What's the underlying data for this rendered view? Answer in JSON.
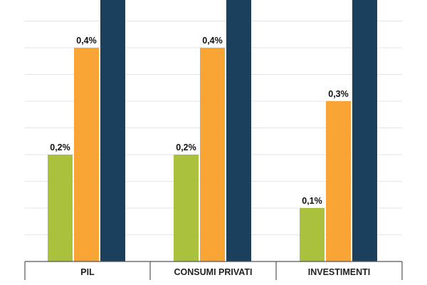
{
  "chart_data": {
    "type": "bar",
    "categories": [
      "PIL",
      "CONSUMI PRIVATI",
      "INVESTIMENTI"
    ],
    "series": [
      {
        "values": [
          0.2,
          0.2,
          0.1
        ],
        "labels": [
          "0,2%",
          "0,2%",
          "0,1%"
        ],
        "color": "#a9c13d"
      },
      {
        "values": [
          0.4,
          0.4,
          0.3
        ],
        "labels": [
          "0,4%",
          "0,4%",
          "0,3%"
        ],
        "color": "#f9a535"
      },
      {
        "values": [
          null,
          null,
          null
        ],
        "labels": [
          null,
          null,
          null
        ],
        "color": "#1b405e"
      }
    ],
    "title": "",
    "xlabel": "",
    "ylabel": "",
    "ylim": [
      0,
      0.5
    ],
    "grid": true,
    "gridline_step": 0.05,
    "legend": "none",
    "note": "third series extends beyond the visible top edge; its values and labels are not visible"
  }
}
